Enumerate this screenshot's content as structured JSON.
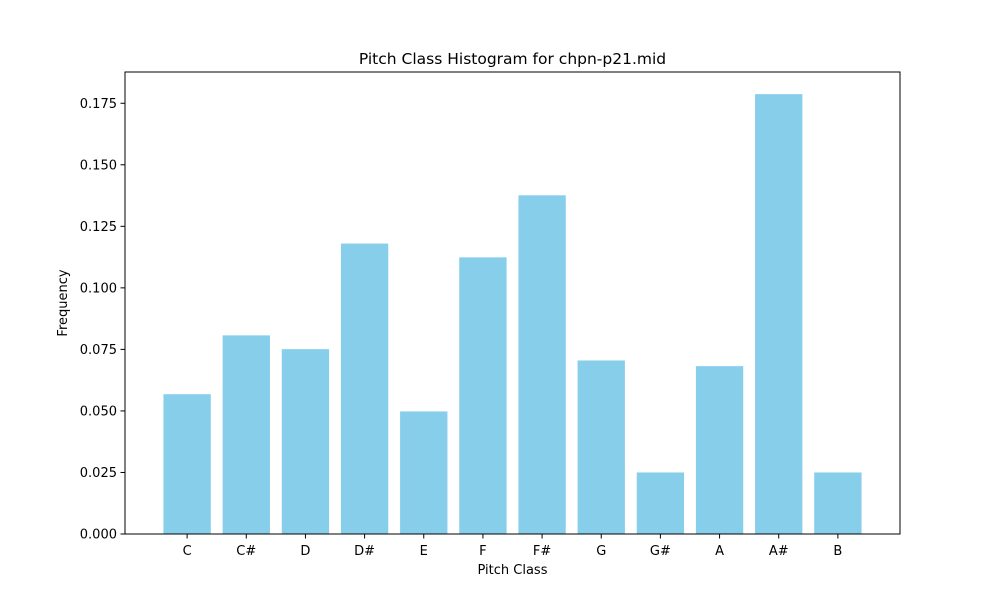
{
  "chart_data": {
    "type": "bar",
    "title": "Pitch Class Histogram for chpn-p21.mid",
    "xlabel": "Pitch Class",
    "ylabel": "Frequency",
    "categories": [
      "C",
      "C#",
      "D",
      "D#",
      "E",
      "F",
      "F#",
      "G",
      "G#",
      "A",
      "A#",
      "B"
    ],
    "values": [
      0.0568,
      0.0807,
      0.0751,
      0.118,
      0.0498,
      0.1124,
      0.1376,
      0.0705,
      0.025,
      0.0682,
      0.1787,
      0.025
    ],
    "ylim": [
      0,
      0.1877
    ],
    "yticks": [
      "0.000",
      "0.025",
      "0.050",
      "0.075",
      "0.100",
      "0.125",
      "0.150",
      "0.175"
    ],
    "bar_color": "#87ceeb",
    "grid": false,
    "legend": "none"
  }
}
